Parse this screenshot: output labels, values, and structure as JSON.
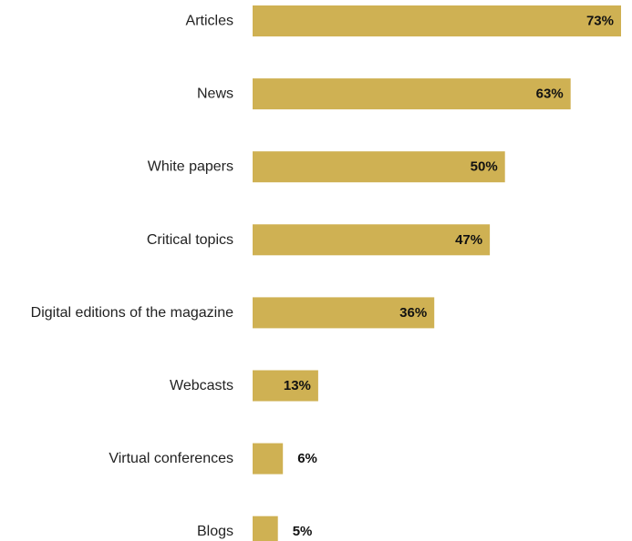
{
  "chart_data": {
    "type": "bar",
    "orientation": "horizontal",
    "categories": [
      "Articles",
      "News",
      "White papers",
      "Critical topics",
      "Digital editions of the magazine",
      "Webcasts",
      "Virtual conferences",
      "Blogs"
    ],
    "values": [
      73,
      63,
      50,
      47,
      36,
      13,
      6,
      5
    ],
    "value_labels": [
      "73%",
      "63%",
      "50%",
      "47%",
      "36%",
      "13%",
      "6%",
      "5%"
    ],
    "unit": "%",
    "xlim": [
      0,
      73
    ],
    "grid": false,
    "legend": "none",
    "colors": {
      "bar": "#CFB153",
      "text": "#222222",
      "value_text": "#111111",
      "background": "#FFFFFF"
    }
  }
}
